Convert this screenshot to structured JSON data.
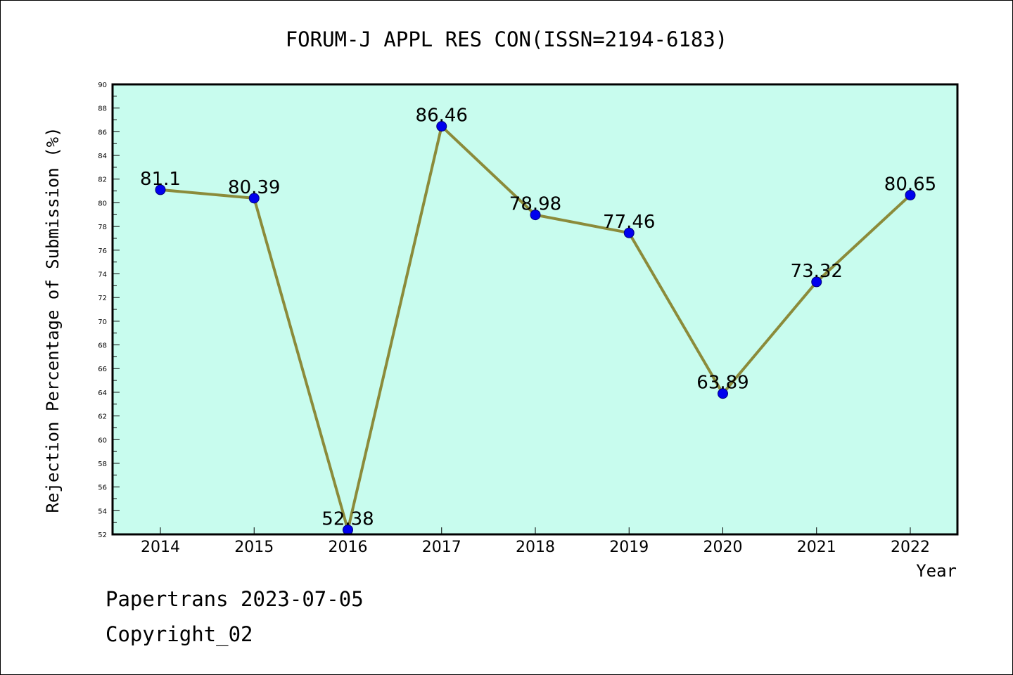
{
  "chart_data": {
    "type": "line",
    "title": "FORUM-J APPL RES CON(ISSN=2194-6183)",
    "xlabel": "Year",
    "ylabel": "Rejection Percentage of Submission (%)",
    "categories": [
      "2014",
      "2015",
      "2016",
      "2017",
      "2018",
      "2019",
      "2020",
      "2021",
      "2022"
    ],
    "values": [
      81.1,
      80.39,
      52.38,
      86.46,
      78.98,
      77.46,
      63.89,
      73.32,
      80.65
    ],
    "data_labels": [
      "81.1",
      "80.39",
      "52.38",
      "86.46",
      "78.98",
      "77.46",
      "63.89",
      "73.32",
      "80.65"
    ],
    "ylim": [
      52,
      90
    ],
    "ytick_step": 2,
    "grid": false,
    "colors": {
      "plot_background": "#c8fcee",
      "line": "#8b8b3a",
      "marker": "#0000ee"
    }
  },
  "footer": {
    "line1": "Papertrans 2023-07-05",
    "line2": "Copyright_02"
  }
}
